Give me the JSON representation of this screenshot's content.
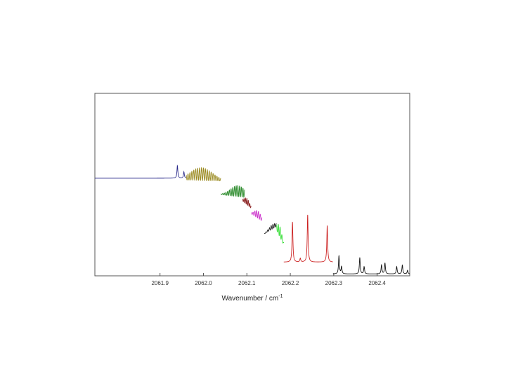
{
  "chart_data": {
    "type": "line",
    "xlabel": "Wavenumber / cm",
    "xlabel_superscript": "-1",
    "ylabel": "",
    "xlim": [
      2061.75,
      2062.475
    ],
    "ylim": [
      0,
      1
    ],
    "x_ticks": [
      {
        "value": 2061.9,
        "label": "2061.9"
      },
      {
        "value": 2062.0,
        "label": "2062.0"
      },
      {
        "value": 2062.1,
        "label": "2062.1"
      },
      {
        "value": 2062.2,
        "label": "2062.2"
      },
      {
        "value": 2062.3,
        "label": "2062.3"
      },
      {
        "value": 2062.4,
        "label": "2062.4"
      }
    ],
    "grid": false,
    "y_tick_labels_shown": false,
    "series": [
      {
        "color": "#2a2a8a",
        "kind": "baseline-bump",
        "x": [
          2061.75,
          2061.96
        ],
        "baseline": 0.535,
        "peaks": [
          {
            "x": 2061.94,
            "h": 0.07
          },
          {
            "x": 2061.955,
            "h": 0.035
          }
        ]
      },
      {
        "color": "#9a8a20",
        "kind": "comb",
        "x": [
          2061.96,
          2062.04
        ],
        "start": 0.525,
        "end": 0.52,
        "envelope_peak": 2061.995,
        "amp": 0.07,
        "n": 18
      },
      {
        "color": "#2a8a2a",
        "kind": "comb",
        "x": [
          2062.04,
          2062.095
        ],
        "start": 0.445,
        "end": 0.43,
        "envelope_peak": 2062.08,
        "amp": 0.06,
        "n": 14
      },
      {
        "color": "#8a2020",
        "kind": "comb",
        "x": [
          2062.09,
          2062.11
        ],
        "start": 0.41,
        "end": 0.37,
        "envelope_peak": 2062.1,
        "amp": 0.035,
        "n": 6
      },
      {
        "color": "#cc33cc",
        "kind": "comb",
        "x": [
          2062.11,
          2062.135
        ],
        "start": 0.34,
        "end": 0.3,
        "envelope_peak": 2062.125,
        "amp": 0.04,
        "n": 6
      },
      {
        "color": "#222222",
        "kind": "comb",
        "x": [
          2062.14,
          2062.168
        ],
        "start": 0.23,
        "end": 0.27,
        "envelope_peak": 2062.16,
        "amp": 0.025,
        "n": 7
      },
      {
        "color": "#33dd33",
        "kind": "comb",
        "x": [
          2062.168,
          2062.185
        ],
        "start": 0.25,
        "end": 0.17,
        "envelope_peak": 2062.175,
        "amp": 0.06,
        "n": 4
      },
      {
        "color": "#cc2222",
        "kind": "peaks",
        "x": [
          2062.185,
          2062.298
        ],
        "baseline": 0.075,
        "peaks": [
          {
            "x": 2062.205,
            "h": 0.22
          },
          {
            "x": 2062.223,
            "h": 0.02
          },
          {
            "x": 2062.24,
            "h": 0.26
          },
          {
            "x": 2062.285,
            "h": 0.2
          }
        ]
      },
      {
        "color": "#111111",
        "kind": "peaks",
        "x": [
          2062.298,
          2062.475
        ],
        "baseline": 0.01,
        "peaks": [
          {
            "x": 2062.312,
            "h": 0.1
          },
          {
            "x": 2062.318,
            "h": 0.04
          },
          {
            "x": 2062.36,
            "h": 0.09
          },
          {
            "x": 2062.37,
            "h": 0.04
          },
          {
            "x": 2062.41,
            "h": 0.05
          },
          {
            "x": 2062.418,
            "h": 0.06
          },
          {
            "x": 2062.445,
            "h": 0.04
          },
          {
            "x": 2062.458,
            "h": 0.05
          },
          {
            "x": 2062.47,
            "h": 0.02
          }
        ]
      }
    ]
  }
}
